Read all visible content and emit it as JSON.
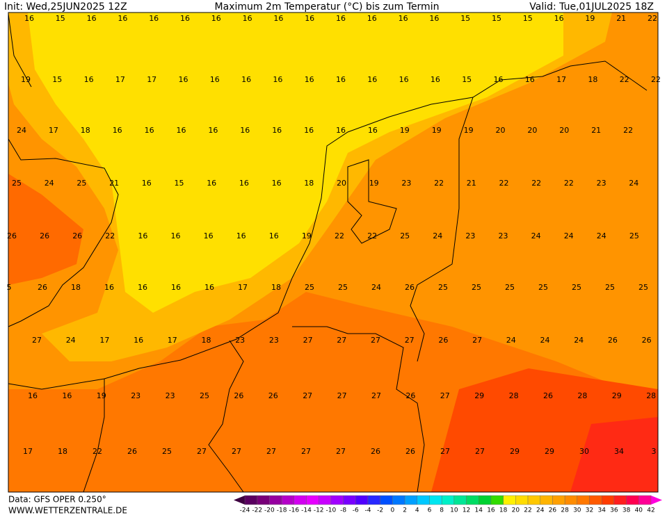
{
  "header": {
    "init": "Init: Wed,25JUN2025 12Z",
    "title": "Maximum 2m Temperatur (°C) bis zum Termin",
    "valid": "Valid: Tue,01JUL2025 18Z"
  },
  "footer": {
    "data": "Data: GFS OPER 0.250°",
    "site": "WWW.WETTERZENTRALE.DE"
  },
  "map": {
    "rows": [
      [
        16,
        15,
        16,
        16,
        16,
        16,
        16,
        16,
        16,
        16,
        16,
        16,
        16,
        16,
        15,
        15,
        15,
        16,
        19,
        21,
        22
      ],
      [
        19,
        15,
        16,
        17,
        17,
        16,
        16,
        16,
        16,
        16,
        16,
        16,
        16,
        16,
        15,
        16,
        16,
        17,
        18,
        22,
        22
      ],
      [
        24,
        17,
        18,
        16,
        16,
        16,
        16,
        16,
        16,
        16,
        16,
        16,
        19,
        19,
        19,
        20,
        20,
        20,
        21,
        22
      ],
      [
        25,
        24,
        25,
        21,
        16,
        15,
        16,
        16,
        16,
        18,
        20,
        19,
        23,
        22,
        21,
        22,
        22,
        22,
        23,
        24
      ],
      [
        26,
        26,
        26,
        22,
        16,
        16,
        16,
        16,
        16,
        19,
        22,
        22,
        25,
        24,
        23,
        23,
        24,
        24,
        24,
        25
      ],
      [
        5,
        26,
        18,
        16,
        16,
        16,
        16,
        17,
        18,
        25,
        25,
        24,
        26,
        25,
        25,
        25,
        25,
        25,
        25,
        25
      ],
      [
        27,
        24,
        17,
        16,
        17,
        18,
        23,
        23,
        27,
        27,
        27,
        27,
        26,
        27,
        24,
        24,
        24,
        26,
        26
      ],
      [
        16,
        16,
        19,
        23,
        23,
        25,
        26,
        26,
        27,
        27,
        27,
        26,
        27,
        29,
        28,
        26,
        28,
        29,
        28
      ],
      [
        17,
        18,
        22,
        26,
        25,
        27,
        27,
        27,
        27,
        27,
        26,
        26,
        27,
        27,
        29,
        29,
        30,
        34,
        3
      ]
    ]
  },
  "legend": {
    "labels": [
      -24,
      -22,
      -20,
      -18,
      -16,
      -14,
      -12,
      -10,
      -8,
      -6,
      -4,
      -2,
      0,
      2,
      4,
      6,
      8,
      10,
      12,
      14,
      16,
      18,
      20,
      22,
      24,
      26,
      28,
      30,
      32,
      34,
      36,
      38,
      40,
      42
    ],
    "colors": [
      "#5a0060",
      "#780078",
      "#9600a0",
      "#b400c8",
      "#d200f0",
      "#e600ff",
      "#c800ff",
      "#a000ff",
      "#7800ff",
      "#5000ff",
      "#2828ff",
      "#0050ff",
      "#0078ff",
      "#00a0ff",
      "#00c8ff",
      "#00e6f0",
      "#00f0c8",
      "#00e696",
      "#00dc64",
      "#00d232",
      "#32dc00",
      "#fff000",
      "#ffdc00",
      "#ffc800",
      "#ffb400",
      "#ffa000",
      "#ff8c00",
      "#ff7800",
      "#ff5a00",
      "#ff3c00",
      "#ff1e1e",
      "#ff0050",
      "#ff0096"
    ],
    "low_color": "#3d0040",
    "high_color": "#ff00dd"
  }
}
